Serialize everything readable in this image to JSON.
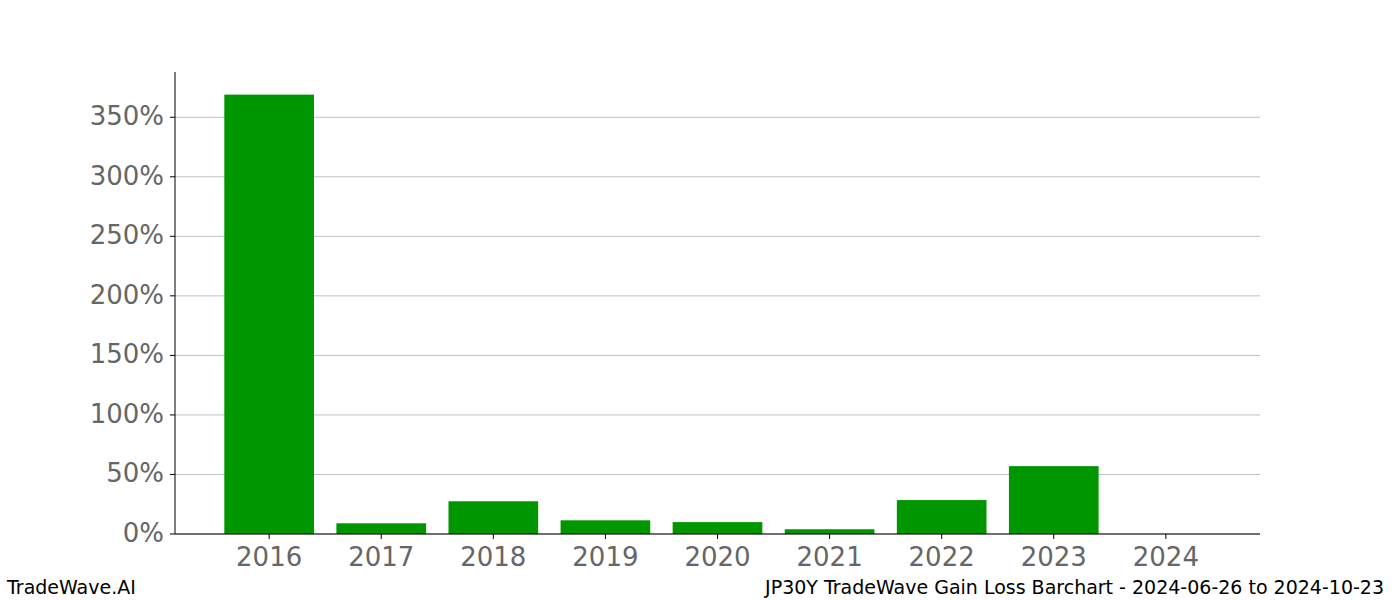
{
  "chart_data": {
    "type": "bar",
    "title": "JP30Y TradeWave Gain Loss Barchart - 2024-06-26 to 2024-10-23",
    "annotations": [
      "TradeWave.AI"
    ],
    "categories": [
      "2016",
      "2017",
      "2018",
      "2019",
      "2020",
      "2021",
      "2022",
      "2023",
      "2024"
    ],
    "values": [
      369,
      9,
      27.5,
      11.5,
      10,
      4,
      28.5,
      57,
      0
    ],
    "color": "#009600",
    "ylim": [
      0,
      388
    ],
    "yticks": [
      {
        "value": 0,
        "label": "0%"
      },
      {
        "value": 50,
        "label": "50%"
      },
      {
        "value": 100,
        "label": "100%"
      },
      {
        "value": 150,
        "label": "150%"
      },
      {
        "value": 200,
        "label": "200%"
      },
      {
        "value": 250,
        "label": "250%"
      },
      {
        "value": 300,
        "label": "300%"
      },
      {
        "value": 350,
        "label": "350%"
      }
    ],
    "grid": true
  }
}
